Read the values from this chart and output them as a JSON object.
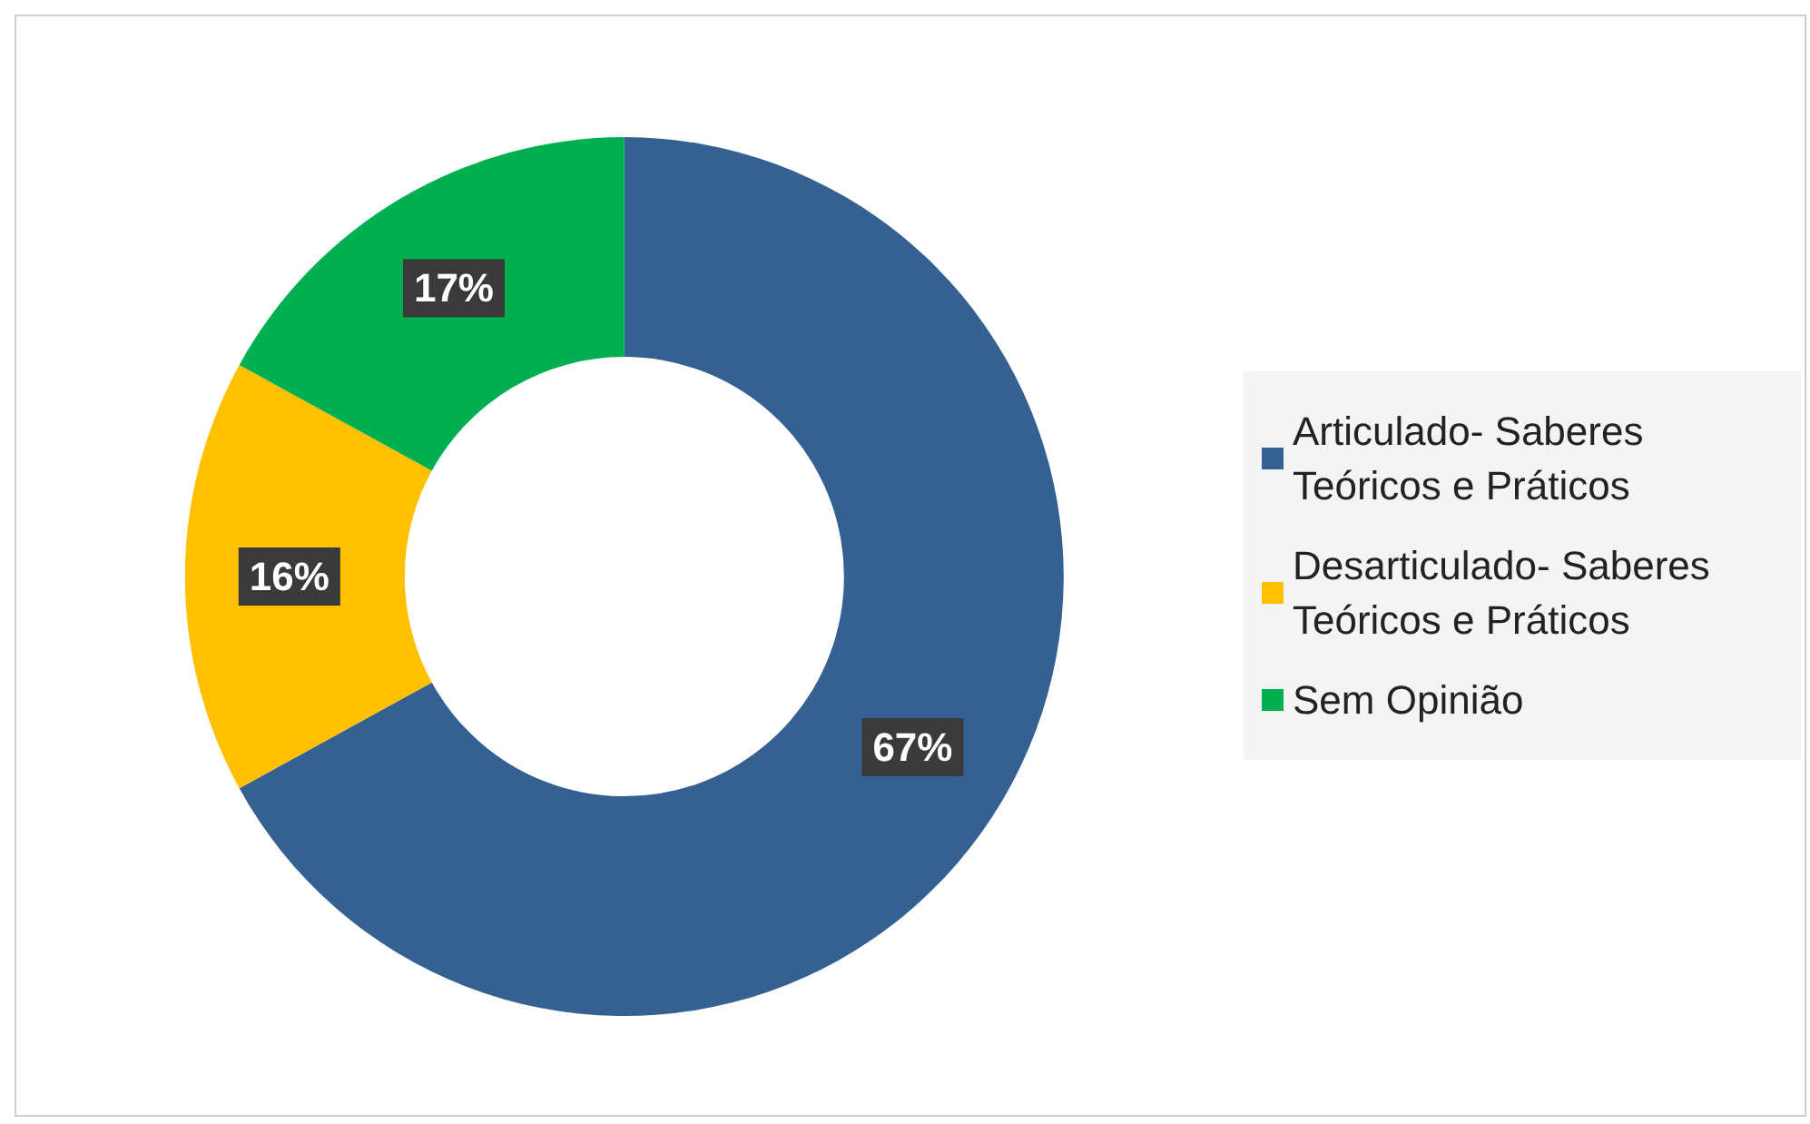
{
  "chart_data": {
    "type": "donut",
    "categories": [
      "Articulado- Saberes Teóricos e Práticos",
      "Desarticulado- Saberes Teóricos e Práticos",
      "Sem Opinião"
    ],
    "values": [
      67,
      16,
      17
    ],
    "colors": [
      "#356092",
      "#ffc000",
      "#00b050"
    ],
    "value_labels": [
      "67%",
      "16%",
      "17%"
    ],
    "legend": "right"
  }
}
